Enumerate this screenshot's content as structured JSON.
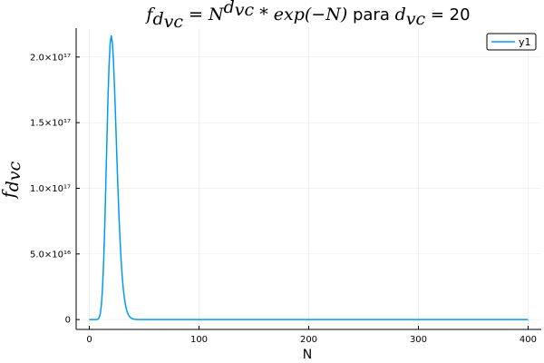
{
  "chart_data": {
    "type": "line",
    "title": {
      "lhs": "f",
      "lhs_sub": "d",
      "lhs_subsub": "vc",
      "eq": " = N",
      "exp_base": "d",
      "exp_sub": "vc",
      "rhs": " * exp(−N)",
      "text": " para ",
      "param": "d",
      "param_sub": "vc",
      "param_value": " = 20"
    },
    "xlabel": "N",
    "ylabel": {
      "base": "f",
      "sub": "d",
      "subsub": "vc"
    },
    "xlim": [
      -12,
      412
    ],
    "ylim": [
      -7500000000000000.0,
      2.22e+17
    ],
    "x_ticks": [
      0,
      100,
      200,
      300,
      400
    ],
    "x_tick_labels": [
      "0",
      "100",
      "200",
      "300",
      "400"
    ],
    "y_ticks": [
      0,
      5e+16,
      1e+17,
      1.5e+17,
      2e+17
    ],
    "y_tick_labels": [
      "0",
      "5.0×10¹⁶",
      "1.0×10¹⁷",
      "1.5×10¹⁷",
      "2.0×10¹⁷"
    ],
    "grid": true,
    "legend_position": "top-right",
    "series": [
      {
        "name": "y1",
        "color": "#009af9",
        "d_vc": 20,
        "x_range": [
          0,
          400
        ]
      }
    ]
  }
}
